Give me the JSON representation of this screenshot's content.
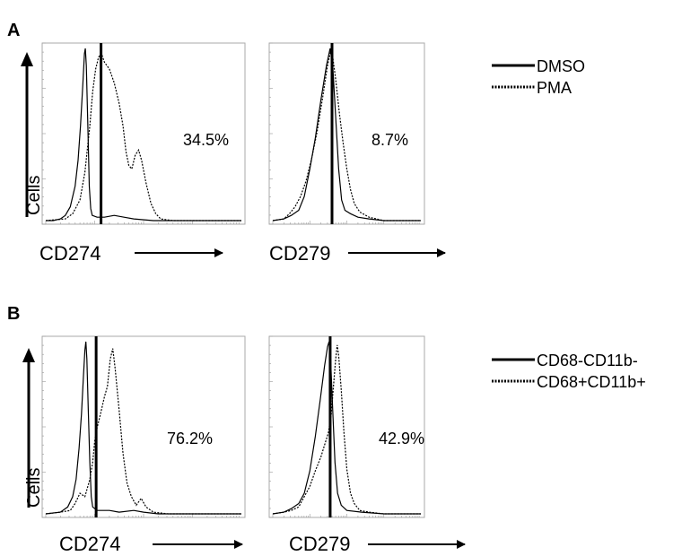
{
  "panels": [
    {
      "letter": "A",
      "legend": [
        "DMSO",
        "PMA"
      ],
      "ylabel": "Cells",
      "plots": [
        {
          "xlabel": "CD274",
          "percent": "34.5%",
          "solid": [
            [
              0,
              0.0
            ],
            [
              0.15,
              0.0
            ],
            [
              0.3,
              0.01
            ],
            [
              0.4,
              0.03
            ],
            [
              0.5,
              0.08
            ],
            [
              0.6,
              0.2
            ],
            [
              0.66,
              0.35
            ],
            [
              0.71,
              0.55
            ],
            [
              0.76,
              0.8
            ],
            [
              0.79,
              0.97
            ],
            [
              0.81,
              1.0
            ],
            [
              0.83,
              0.9
            ],
            [
              0.86,
              0.55
            ],
            [
              0.89,
              0.2
            ],
            [
              0.92,
              0.07
            ],
            [
              0.95,
              0.03
            ],
            [
              1.05,
              0.02
            ],
            [
              1.2,
              0.02
            ],
            [
              1.4,
              0.03
            ],
            [
              1.6,
              0.02
            ],
            [
              1.8,
              0.01
            ],
            [
              2.2,
              0.0
            ],
            [
              4,
              0.0
            ]
          ],
          "dashed": [
            [
              0,
              0.0
            ],
            [
              0.4,
              0.01
            ],
            [
              0.55,
              0.04
            ],
            [
              0.7,
              0.12
            ],
            [
              0.8,
              0.28
            ],
            [
              0.9,
              0.55
            ],
            [
              0.96,
              0.75
            ],
            [
              1.02,
              0.88
            ],
            [
              1.08,
              0.95
            ],
            [
              1.14,
              0.97
            ],
            [
              1.2,
              0.92
            ],
            [
              1.3,
              0.88
            ],
            [
              1.4,
              0.8
            ],
            [
              1.5,
              0.68
            ],
            [
              1.58,
              0.55
            ],
            [
              1.64,
              0.4
            ],
            [
              1.7,
              0.32
            ],
            [
              1.76,
              0.3
            ],
            [
              1.83,
              0.38
            ],
            [
              1.9,
              0.41
            ],
            [
              1.96,
              0.35
            ],
            [
              2.05,
              0.22
            ],
            [
              2.15,
              0.1
            ],
            [
              2.25,
              0.04
            ],
            [
              2.35,
              0.01
            ],
            [
              2.6,
              0.0
            ],
            [
              4,
              0.0
            ]
          ],
          "gate": 1.13
        },
        {
          "xlabel": "CD279",
          "percent": "8.7%",
          "solid": [
            [
              0,
              0.0
            ],
            [
              0.3,
              0.01
            ],
            [
              0.5,
              0.03
            ],
            [
              0.7,
              0.06
            ],
            [
              0.85,
              0.14
            ],
            [
              1.0,
              0.3
            ],
            [
              1.15,
              0.48
            ],
            [
              1.3,
              0.7
            ],
            [
              1.45,
              0.9
            ],
            [
              1.55,
              1.0
            ],
            [
              1.62,
              0.9
            ],
            [
              1.7,
              0.6
            ],
            [
              1.78,
              0.3
            ],
            [
              1.86,
              0.12
            ],
            [
              1.95,
              0.06
            ],
            [
              2.1,
              0.04
            ],
            [
              2.3,
              0.02
            ],
            [
              2.6,
              0.01
            ],
            [
              3.0,
              0.0
            ],
            [
              4,
              0.0
            ]
          ],
          "dashed": [
            [
              0,
              0.0
            ],
            [
              0.3,
              0.01
            ],
            [
              0.45,
              0.04
            ],
            [
              0.6,
              0.08
            ],
            [
              0.75,
              0.14
            ],
            [
              0.9,
              0.23
            ],
            [
              1.05,
              0.36
            ],
            [
              1.2,
              0.52
            ],
            [
              1.35,
              0.72
            ],
            [
              1.48,
              0.9
            ],
            [
              1.56,
              0.98
            ],
            [
              1.62,
              0.95
            ],
            [
              1.7,
              0.82
            ],
            [
              1.8,
              0.62
            ],
            [
              1.9,
              0.45
            ],
            [
              2.0,
              0.3
            ],
            [
              2.1,
              0.18
            ],
            [
              2.2,
              0.1
            ],
            [
              2.35,
              0.05
            ],
            [
              2.6,
              0.02
            ],
            [
              3.0,
              0.0
            ],
            [
              4,
              0.0
            ]
          ],
          "gate": 1.6
        }
      ]
    },
    {
      "letter": "B",
      "legend": [
        "CD68-CD11b-",
        "CD68+CD11b+"
      ],
      "ylabel": "Cells",
      "plots": [
        {
          "xlabel": "CD274",
          "percent": "76.2%",
          "solid": [
            [
              0,
              0.0
            ],
            [
              0.3,
              0.01
            ],
            [
              0.45,
              0.04
            ],
            [
              0.55,
              0.1
            ],
            [
              0.62,
              0.2
            ],
            [
              0.68,
              0.38
            ],
            [
              0.73,
              0.58
            ],
            [
              0.77,
              0.8
            ],
            [
              0.8,
              0.95
            ],
            [
              0.82,
              1.0
            ],
            [
              0.84,
              0.9
            ],
            [
              0.87,
              0.6
            ],
            [
              0.9,
              0.3
            ],
            [
              0.93,
              0.1
            ],
            [
              0.96,
              0.04
            ],
            [
              1.05,
              0.02
            ],
            [
              1.3,
              0.02
            ],
            [
              1.5,
              0.01
            ],
            [
              1.8,
              0.02
            ],
            [
              2.0,
              0.01
            ],
            [
              2.3,
              0.0
            ],
            [
              4,
              0.0
            ]
          ],
          "dashed": [
            [
              0,
              0.0
            ],
            [
              0.3,
              0.01
            ],
            [
              0.5,
              0.02
            ],
            [
              0.6,
              0.06
            ],
            [
              0.7,
              0.12
            ],
            [
              0.8,
              0.1
            ],
            [
              0.9,
              0.2
            ],
            [
              0.96,
              0.3
            ],
            [
              1.0,
              0.42
            ],
            [
              1.05,
              0.5
            ],
            [
              1.12,
              0.58
            ],
            [
              1.2,
              0.68
            ],
            [
              1.26,
              0.74
            ],
            [
              1.32,
              0.9
            ],
            [
              1.37,
              0.96
            ],
            [
              1.42,
              0.84
            ],
            [
              1.5,
              0.6
            ],
            [
              1.58,
              0.35
            ],
            [
              1.66,
              0.18
            ],
            [
              1.75,
              0.1
            ],
            [
              1.85,
              0.05
            ],
            [
              1.95,
              0.09
            ],
            [
              2.05,
              0.04
            ],
            [
              2.2,
              0.01
            ],
            [
              2.5,
              0.0
            ],
            [
              4,
              0.0
            ]
          ],
          "gate": 1.03
        },
        {
          "xlabel": "CD279",
          "percent": "42.9%",
          "solid": [
            [
              0,
              0.0
            ],
            [
              0.3,
              0.01
            ],
            [
              0.5,
              0.03
            ],
            [
              0.7,
              0.06
            ],
            [
              0.85,
              0.12
            ],
            [
              1.0,
              0.25
            ],
            [
              1.15,
              0.45
            ],
            [
              1.28,
              0.66
            ],
            [
              1.4,
              0.86
            ],
            [
              1.48,
              0.97
            ],
            [
              1.52,
              1.0
            ],
            [
              1.56,
              0.9
            ],
            [
              1.62,
              0.6
            ],
            [
              1.68,
              0.3
            ],
            [
              1.75,
              0.12
            ],
            [
              1.85,
              0.05
            ],
            [
              2.0,
              0.02
            ],
            [
              2.4,
              0.01
            ],
            [
              3.0,
              0.0
            ],
            [
              4,
              0.0
            ]
          ],
          "dashed": [
            [
              0,
              0.0
            ],
            [
              0.3,
              0.01
            ],
            [
              0.5,
              0.02
            ],
            [
              0.7,
              0.04
            ],
            [
              0.85,
              0.1
            ],
            [
              1.0,
              0.16
            ],
            [
              1.15,
              0.25
            ],
            [
              1.3,
              0.33
            ],
            [
              1.4,
              0.4
            ],
            [
              1.5,
              0.47
            ],
            [
              1.58,
              0.58
            ],
            [
              1.64,
              0.74
            ],
            [
              1.7,
              0.9
            ],
            [
              1.74,
              0.98
            ],
            [
              1.78,
              0.92
            ],
            [
              1.85,
              0.72
            ],
            [
              1.92,
              0.48
            ],
            [
              2.0,
              0.26
            ],
            [
              2.1,
              0.12
            ],
            [
              2.2,
              0.06
            ],
            [
              2.35,
              0.02
            ],
            [
              2.6,
              0.01
            ],
            [
              3.0,
              0.0
            ],
            [
              4,
              0.0
            ]
          ],
          "gate": 1.55
        }
      ]
    }
  ],
  "chart_data": [
    {
      "type": "area",
      "panel": "A",
      "xlabel": "CD274",
      "ylabel": "Cells",
      "series": [
        {
          "name": "DMSO"
        },
        {
          "name": "PMA"
        }
      ],
      "annotation": "34.5%"
    },
    {
      "type": "area",
      "panel": "A",
      "xlabel": "CD279",
      "ylabel": "Cells",
      "series": [
        {
          "name": "DMSO"
        },
        {
          "name": "PMA"
        }
      ],
      "annotation": "8.7%"
    },
    {
      "type": "area",
      "panel": "B",
      "xlabel": "CD274",
      "ylabel": "Cells",
      "series": [
        {
          "name": "CD68-CD11b-"
        },
        {
          "name": "CD68+CD11b+"
        }
      ],
      "annotation": "76.2%"
    },
    {
      "type": "area",
      "panel": "B",
      "xlabel": "CD279",
      "ylabel": "Cells",
      "series": [
        {
          "name": "CD68-CD11b-"
        },
        {
          "name": "CD68+CD11b+"
        }
      ],
      "annotation": "42.9%"
    }
  ]
}
